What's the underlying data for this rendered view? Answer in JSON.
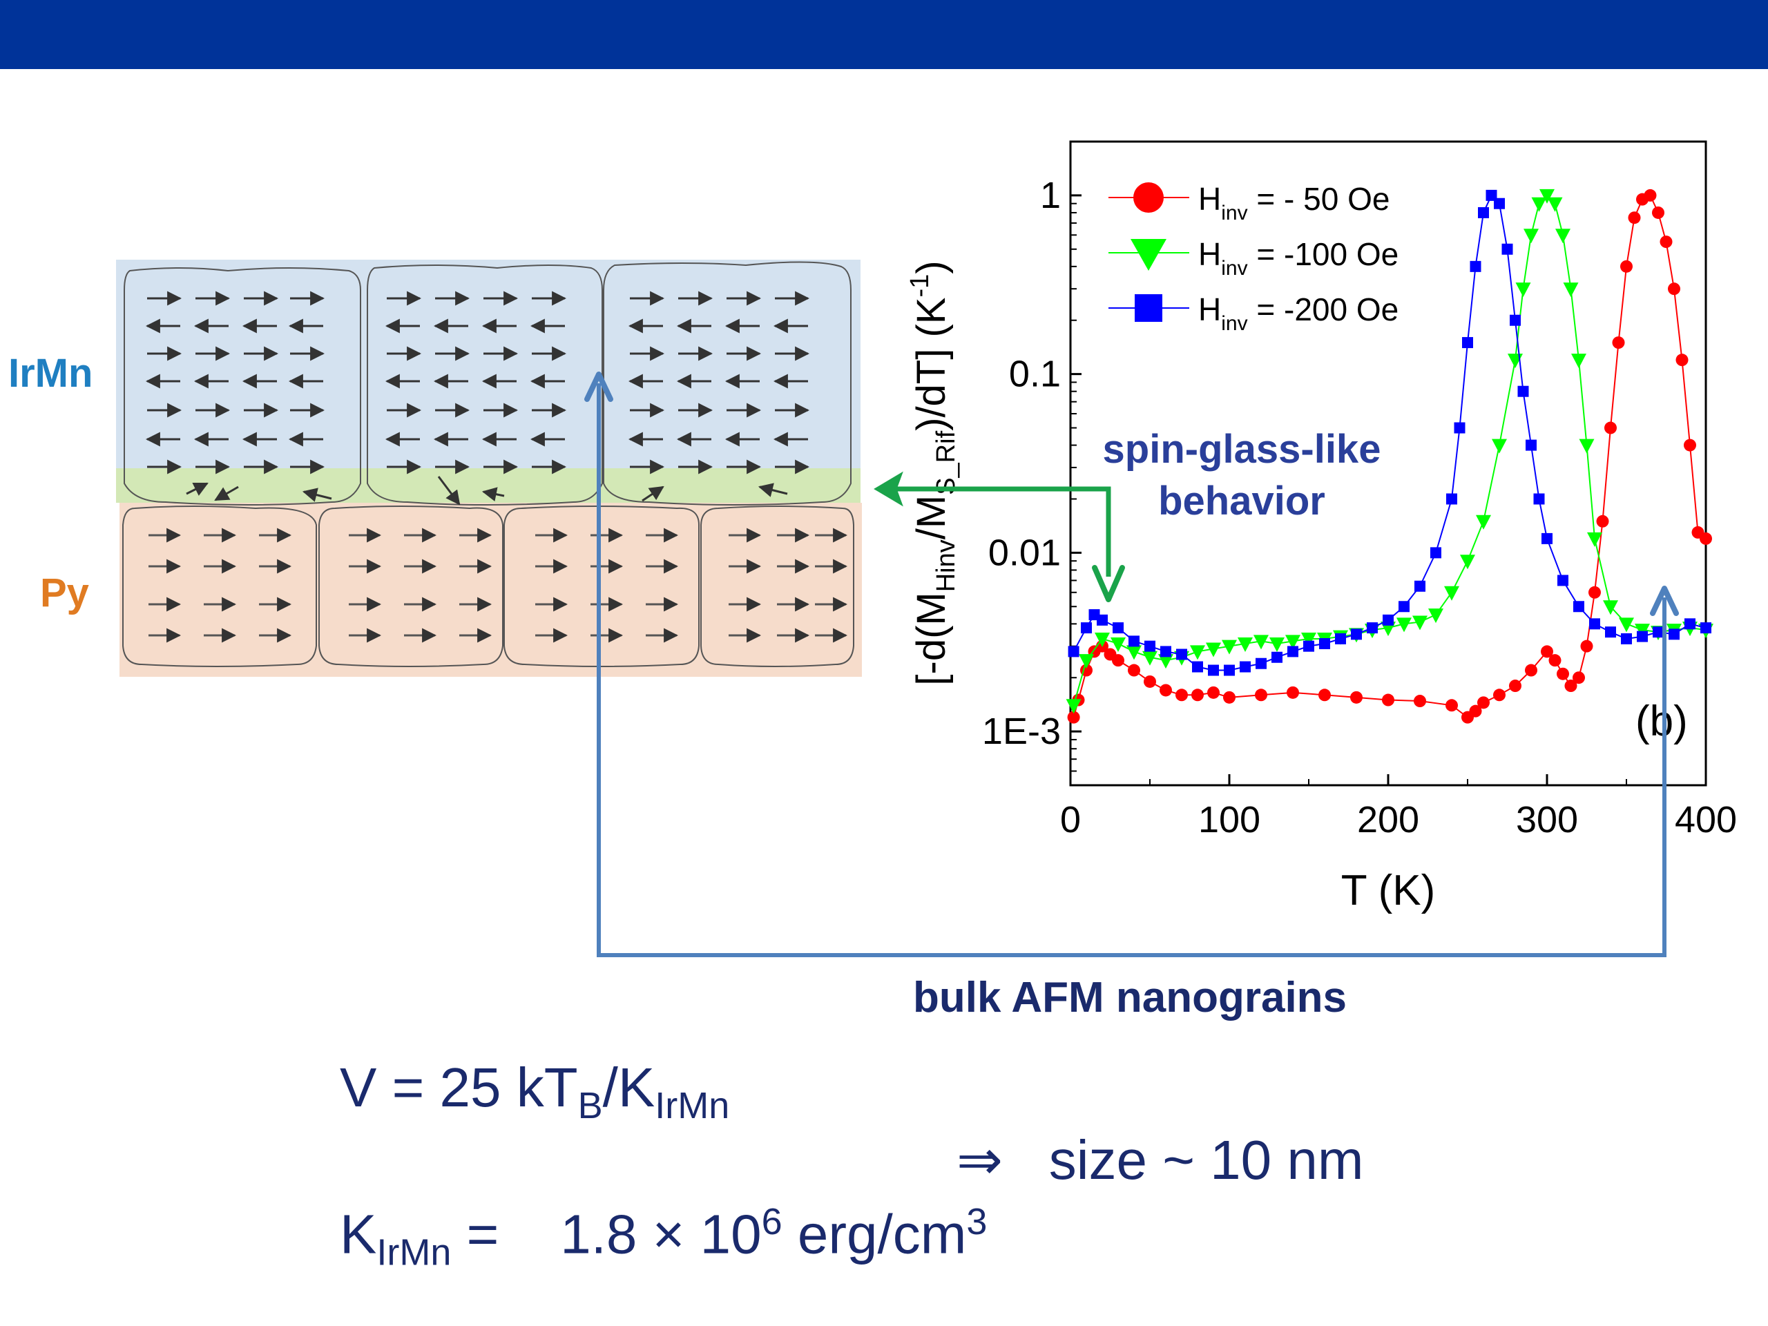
{
  "slide": {
    "colors": {
      "header_bar": "#003399",
      "text_dark": "#1a2a6c",
      "arrow_green": "#1aa34a",
      "arrow_blue": "#4f81bd"
    }
  },
  "diagram": {
    "irmn_label": "IrMn",
    "py_label": "Py",
    "colors": {
      "irmn": "#1f7fc1",
      "py": "#e07b22",
      "irmn_bg": "#d4e2f0",
      "interface_bg": "#d3e8b6",
      "py_bg": "#f6dccb"
    }
  },
  "annotations": {
    "spin_glass_line1": "spin-glass-like",
    "spin_glass_line2": "behavior",
    "bulk_afm": "bulk AFM nanograins"
  },
  "equations": {
    "v_lhs": "V = 25 kT",
    "v_sub_b": "B",
    "v_slash_k": "/K",
    "v_sub_irmn": "IrMn",
    "arrow": "⇒",
    "size": "size ~ 10 nm",
    "k_k": "K",
    "k_sub": "IrMn",
    "k_eq": " =    1.8 × 10",
    "k_exp6": "6",
    "k_unit": " erg/cm",
    "k_exp3": "3"
  },
  "chart_data": {
    "type": "scatter",
    "panel_label": "(b)",
    "xlabel": "T (K)",
    "ylabel_parts": {
      "a": "[-d(M",
      "b": "Hinv",
      "c": "/M",
      "d": "S_Rif",
      "e": ")/dT] (K",
      "f": "-1",
      "g": ")"
    },
    "xlim": [
      0,
      400
    ],
    "ylim": [
      0.0005,
      2
    ],
    "yscale": "log",
    "x_ticks": [
      "0",
      "100",
      "200",
      "300",
      "400"
    ],
    "y_ticks": [
      "1",
      "0.1",
      "0.01",
      "1E-3"
    ],
    "series": [
      {
        "name": "H",
        "name_sub": "inv",
        "name_rest": " = - 50 Oe",
        "color": "#ff0000",
        "marker": "circle",
        "x": [
          2,
          5,
          10,
          15,
          20,
          25,
          30,
          40,
          50,
          60,
          70,
          80,
          90,
          100,
          120,
          140,
          160,
          180,
          200,
          220,
          240,
          250,
          255,
          260,
          270,
          280,
          290,
          300,
          305,
          310,
          315,
          320,
          325,
          330,
          335,
          340,
          345,
          350,
          355,
          360,
          365,
          370,
          375,
          380,
          385,
          390,
          395,
          400
        ],
        "y": [
          0.0012,
          0.0015,
          0.0022,
          0.0028,
          0.003,
          0.0027,
          0.0025,
          0.0022,
          0.0019,
          0.0017,
          0.0016,
          0.0016,
          0.00165,
          0.00155,
          0.0016,
          0.00165,
          0.0016,
          0.00155,
          0.0015,
          0.00148,
          0.0014,
          0.0012,
          0.0013,
          0.00145,
          0.0016,
          0.0018,
          0.0022,
          0.0028,
          0.0025,
          0.0021,
          0.0018,
          0.002,
          0.003,
          0.006,
          0.015,
          0.05,
          0.15,
          0.4,
          0.75,
          0.95,
          1.0,
          0.8,
          0.55,
          0.3,
          0.12,
          0.04,
          0.013,
          0.012
        ]
      },
      {
        "name": "H",
        "name_sub": "inv",
        "name_rest": " = -100 Oe",
        "color": "#00ff00",
        "marker": "triangle-down",
        "x": [
          2,
          10,
          20,
          30,
          40,
          50,
          60,
          70,
          80,
          90,
          100,
          110,
          120,
          130,
          140,
          150,
          160,
          170,
          180,
          190,
          200,
          210,
          220,
          230,
          240,
          250,
          260,
          270,
          280,
          285,
          290,
          295,
          300,
          305,
          310,
          315,
          320,
          325,
          330,
          340,
          350,
          360,
          370,
          380,
          390,
          400
        ],
        "y": [
          0.0014,
          0.0025,
          0.0033,
          0.0031,
          0.0028,
          0.0026,
          0.0025,
          0.0026,
          0.0028,
          0.0029,
          0.003,
          0.0031,
          0.0032,
          0.0031,
          0.0032,
          0.0033,
          0.0033,
          0.0034,
          0.0035,
          0.0037,
          0.0038,
          0.004,
          0.0041,
          0.0045,
          0.006,
          0.009,
          0.015,
          0.04,
          0.12,
          0.3,
          0.6,
          0.9,
          1.0,
          0.9,
          0.6,
          0.3,
          0.12,
          0.04,
          0.012,
          0.005,
          0.004,
          0.0037,
          0.0036,
          0.0037,
          0.0038,
          0.0037
        ]
      },
      {
        "name": "H",
        "name_sub": "inv",
        "name_rest": " = -200 Oe",
        "color": "#0000ff",
        "marker": "square",
        "x": [
          2,
          10,
          15,
          20,
          30,
          40,
          50,
          60,
          70,
          80,
          90,
          100,
          110,
          120,
          130,
          140,
          150,
          160,
          170,
          180,
          190,
          200,
          210,
          220,
          230,
          240,
          245,
          250,
          255,
          260,
          265,
          270,
          275,
          280,
          285,
          290,
          295,
          300,
          310,
          320,
          330,
          340,
          350,
          360,
          370,
          380,
          390,
          400
        ],
        "y": [
          0.0028,
          0.0038,
          0.0045,
          0.0042,
          0.0038,
          0.0032,
          0.003,
          0.0028,
          0.0027,
          0.0023,
          0.0022,
          0.0022,
          0.0023,
          0.0024,
          0.0026,
          0.0028,
          0.003,
          0.0031,
          0.0033,
          0.0035,
          0.0038,
          0.0042,
          0.005,
          0.0065,
          0.01,
          0.02,
          0.05,
          0.15,
          0.4,
          0.8,
          1.0,
          0.9,
          0.5,
          0.2,
          0.08,
          0.04,
          0.02,
          0.012,
          0.007,
          0.005,
          0.004,
          0.0036,
          0.0033,
          0.0034,
          0.0036,
          0.0035,
          0.004,
          0.0038
        ]
      }
    ]
  }
}
